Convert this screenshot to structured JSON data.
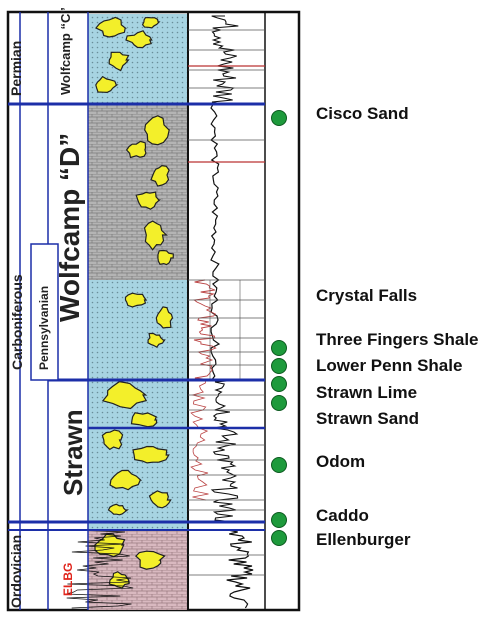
{
  "columns": {
    "era_labels": [
      "Permian",
      "Carboniferous",
      "Ordovician"
    ],
    "period_labels": [
      "Pennsylvanian"
    ],
    "formation_labels": [
      "Wolfcamp “C”",
      "Wolfcamp “D”",
      "Strawn",
      "ELBG"
    ]
  },
  "markers": [
    {
      "label": "Cisco Sand"
    },
    {
      "label": "Crystal Falls"
    },
    {
      "label": "Three Fingers Shale"
    },
    {
      "label": "Lower Penn Shale"
    },
    {
      "label": "Strawn Lime"
    },
    {
      "label": "Strawn Sand"
    },
    {
      "label": "Odom"
    },
    {
      "label": "Caddo"
    },
    {
      "label": "Ellenburger"
    }
  ],
  "colors": {
    "marker_fill": "#1e9a3c",
    "boundary_blue": "#1c2fa8",
    "sand_yellow": "#f3ef2a",
    "shale_blue": "#a7d4e2",
    "limestone_gray": "#b0b0b0",
    "elbg_red": "#e0241b"
  }
}
